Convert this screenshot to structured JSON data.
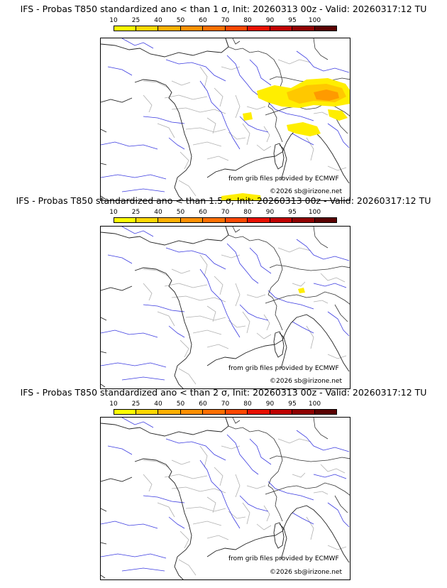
{
  "colorbar": {
    "ticks": [
      "10",
      "25",
      "40",
      "50",
      "60",
      "70",
      "80",
      "90",
      "95",
      "100"
    ],
    "colors": [
      "#ffff00",
      "#ffd800",
      "#ffb000",
      "#ff9000",
      "#ff7000",
      "#ff4800",
      "#e81000",
      "#c00000",
      "#900000",
      "#5a0000"
    ]
  },
  "panels": [
    {
      "title": "IFS - Probas T850  standardized ano < than 1 σ, Init: 20260313 00z - Valid: 20260317:12 TU",
      "source_credit": "from grib files provided by ECMWF",
      "copyright": "©2026 sb@irizone.net"
    },
    {
      "title": "IFS - Probas T850  standardized ano < than 1.5 σ, Init: 20260313 00z - Valid: 20260317:12 TU",
      "source_credit": "from grib files provided by ECMWF",
      "copyright": "©2026 sb@irizone.net"
    },
    {
      "title": "IFS - Probas T850  standardized ano < than 2 σ, Init: 20260313 00z - Valid: 20260317:12 TU",
      "source_credit": "from grib files provided by ECMWF",
      "copyright": "©2026 sb@irizone.net"
    }
  ]
}
